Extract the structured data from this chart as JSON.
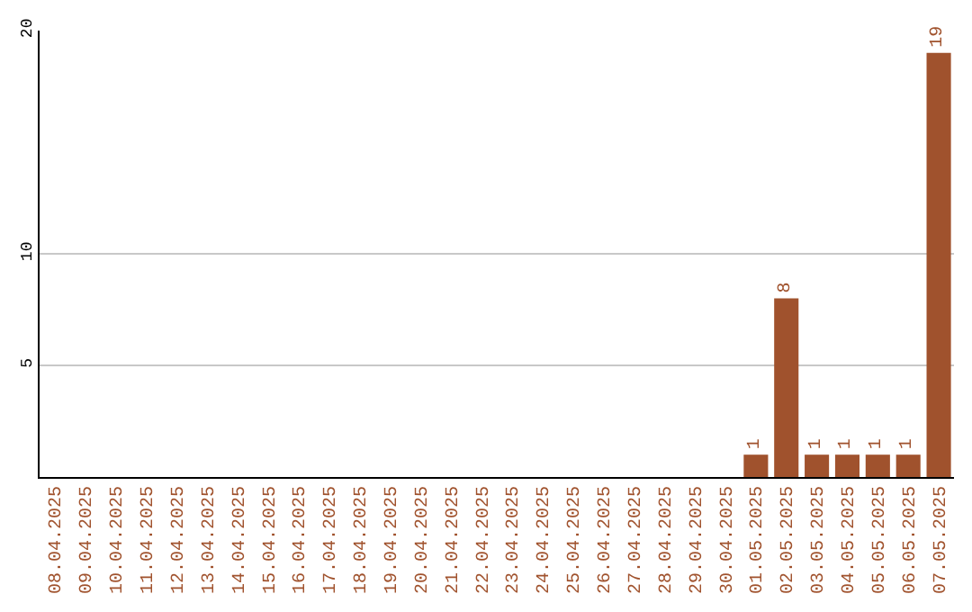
{
  "chart_data": {
    "type": "bar",
    "categories": [
      "08.04.2025",
      "09.04.2025",
      "10.04.2025",
      "11.04.2025",
      "12.04.2025",
      "13.04.2025",
      "14.04.2025",
      "15.04.2025",
      "16.04.2025",
      "17.04.2025",
      "18.04.2025",
      "19.04.2025",
      "20.04.2025",
      "21.04.2025",
      "22.04.2025",
      "23.04.2025",
      "24.04.2025",
      "25.04.2025",
      "26.04.2025",
      "27.04.2025",
      "28.04.2025",
      "29.04.2025",
      "30.04.2025",
      "01.05.2025",
      "02.05.2025",
      "03.05.2025",
      "04.05.2025",
      "05.05.2025",
      "06.05.2025",
      "07.05.2025"
    ],
    "values": [
      0,
      0,
      0,
      0,
      0,
      0,
      0,
      0,
      0,
      0,
      0,
      0,
      0,
      0,
      0,
      0,
      0,
      0,
      0,
      0,
      0,
      0,
      0,
      1,
      8,
      1,
      1,
      1,
      1,
      19
    ],
    "value_labels": [
      null,
      null,
      null,
      null,
      null,
      null,
      null,
      null,
      null,
      null,
      null,
      null,
      null,
      null,
      null,
      null,
      null,
      null,
      null,
      null,
      null,
      null,
      null,
      "1",
      "8",
      "1",
      "1",
      "1",
      "1",
      "19"
    ],
    "color": "#a0522d",
    "ylim": [
      0,
      20
    ],
    "yticks": [
      5,
      10,
      20
    ],
    "grid": "y"
  }
}
